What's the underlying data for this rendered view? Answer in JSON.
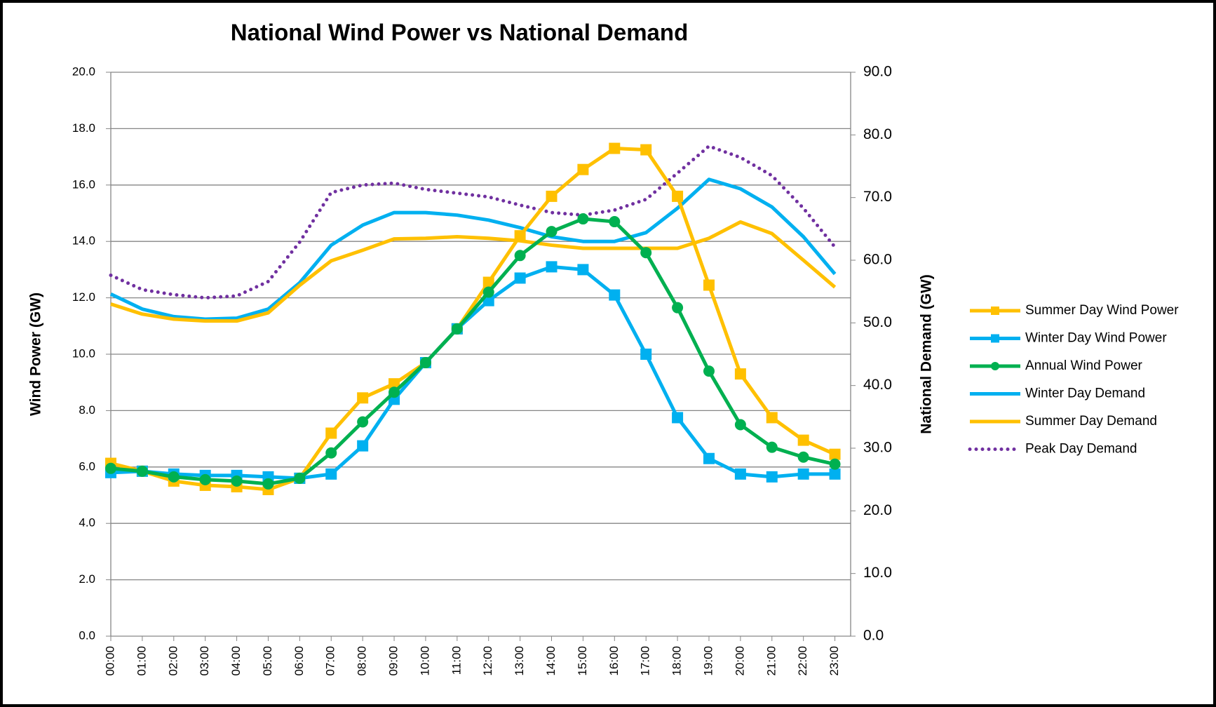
{
  "chart_data": {
    "type": "line",
    "title": "National Wind Power vs National Demand",
    "y_label": "Wind Power (GW)",
    "y2_label": "National Demand (GW)",
    "categories": [
      "00:00",
      "01:00",
      "02:00",
      "03:00",
      "04:00",
      "05:00",
      "06:00",
      "07:00",
      "08:00",
      "09:00",
      "10:00",
      "11:00",
      "12:00",
      "13:00",
      "14:00",
      "15:00",
      "16:00",
      "17:00",
      "18:00",
      "19:00",
      "20:00",
      "21:00",
      "22:00",
      "23:00"
    ],
    "ylim": [
      0,
      20
    ],
    "yticks": [
      {
        "value": 0,
        "label": "0.0"
      },
      {
        "value": 2,
        "label": "2.0"
      },
      {
        "value": 4,
        "label": "4.0"
      },
      {
        "value": 6,
        "label": "6.0"
      },
      {
        "value": 8,
        "label": "8.0"
      },
      {
        "value": 10,
        "label": "10.0"
      },
      {
        "value": 12,
        "label": "12.0"
      },
      {
        "value": 14,
        "label": "14.0"
      },
      {
        "value": 16,
        "label": "16.0"
      },
      {
        "value": 18,
        "label": "18.0"
      },
      {
        "value": 20,
        "label": "20.0"
      }
    ],
    "y2lim": [
      0,
      90
    ],
    "y2ticks": [
      {
        "value": 0,
        "label": "0.0"
      },
      {
        "value": 10,
        "label": "10.0"
      },
      {
        "value": 20,
        "label": "20.0"
      },
      {
        "value": 30,
        "label": "30.0"
      },
      {
        "value": 40,
        "label": "40.0"
      },
      {
        "value": 50,
        "label": "50.0"
      },
      {
        "value": 60,
        "label": "60.0"
      },
      {
        "value": 70,
        "label": "70.0"
      },
      {
        "value": 80,
        "label": "80.0"
      },
      {
        "value": 90,
        "label": "90.0"
      }
    ],
    "grid": true,
    "legend": "right",
    "series": [
      {
        "name": "Summer Day Wind Power",
        "color": "#FFC000",
        "axis": "y",
        "marker": "square",
        "values": [
          6.13,
          5.85,
          5.5,
          5.35,
          5.3,
          5.2,
          5.6,
          7.2,
          8.45,
          8.95,
          9.7,
          10.9,
          12.55,
          14.2,
          15.6,
          16.55,
          17.3,
          17.25,
          15.6,
          12.45,
          9.3,
          7.75,
          6.95,
          6.45
        ]
      },
      {
        "name": "Winter Day Wind Power",
        "color": "#00B0F0",
        "axis": "y",
        "marker": "square",
        "values": [
          5.8,
          5.85,
          5.75,
          5.7,
          5.7,
          5.65,
          5.6,
          5.75,
          6.75,
          8.4,
          9.7,
          10.9,
          11.9,
          12.7,
          13.1,
          13.0,
          12.1,
          10.0,
          7.75,
          6.3,
          5.75,
          5.65,
          5.75,
          5.75
        ]
      },
      {
        "name": "Annual Wind Power",
        "color": "#00B050",
        "axis": "y",
        "marker": "circle",
        "values": [
          5.95,
          5.85,
          5.65,
          5.55,
          5.5,
          5.4,
          5.6,
          6.5,
          7.6,
          8.65,
          9.7,
          10.9,
          12.2,
          13.5,
          14.35,
          14.8,
          14.7,
          13.6,
          11.65,
          9.4,
          7.5,
          6.7,
          6.35,
          6.1
        ]
      },
      {
        "name": "Winter Day Demand",
        "color": "#00B0F0",
        "axis": "y2",
        "values": [
          54.6,
          52.2,
          51.0,
          50.6,
          50.75,
          52.2,
          56.4,
          62.4,
          65.6,
          67.6,
          67.6,
          67.2,
          66.4,
          65.2,
          63.75,
          63.0,
          63.0,
          64.4,
          68.3,
          72.9,
          71.4,
          68.5,
          63.75,
          57.8
        ]
      },
      {
        "name": "Summer Day Demand",
        "color": "#FFC000",
        "axis": "y2",
        "values": [
          53.0,
          51.4,
          50.6,
          50.3,
          50.3,
          51.6,
          56.0,
          59.9,
          61.6,
          63.4,
          63.5,
          63.75,
          63.5,
          63.1,
          62.4,
          61.9,
          61.9,
          61.9,
          61.9,
          63.5,
          66.1,
          64.25,
          60.0,
          55.7
        ]
      },
      {
        "name": "Peak Day Demand",
        "color": "#7030A0",
        "axis": "y2",
        "dash": "dotted",
        "values": [
          57.6,
          55.3,
          54.5,
          54.0,
          54.3,
          56.6,
          62.9,
          70.8,
          72.0,
          72.3,
          71.3,
          70.7,
          70.1,
          68.8,
          67.6,
          67.2,
          68.0,
          69.7,
          73.9,
          78.2,
          76.4,
          73.5,
          68.3,
          62.1
        ]
      }
    ]
  }
}
